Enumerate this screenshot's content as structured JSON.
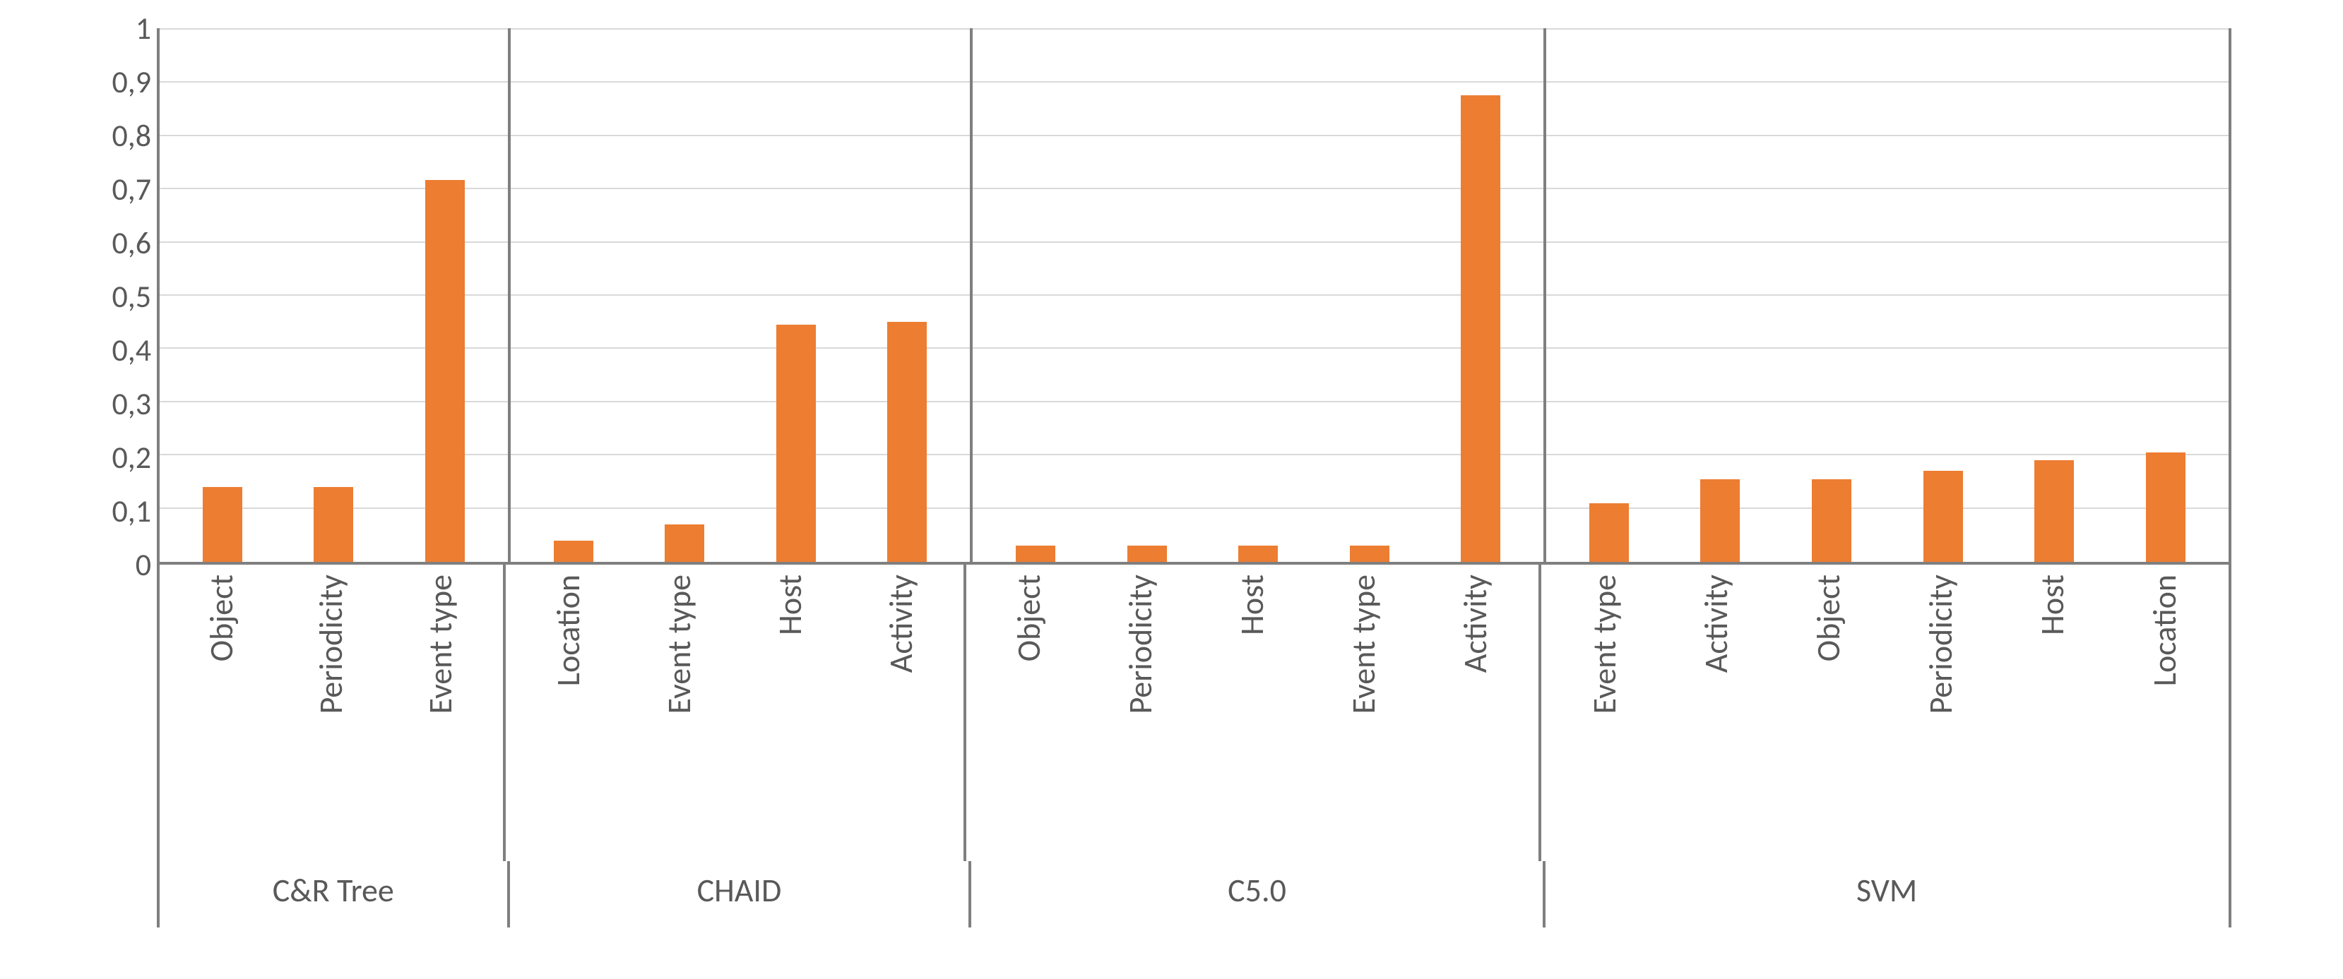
{
  "chart": {
    "type": "bar",
    "ylim": [
      0,
      1
    ],
    "ytick_step": 0.1,
    "ytick_labels": [
      "0",
      "0,1",
      "0,2",
      "0,3",
      "0,4",
      "0,5",
      "0,6",
      "0,7",
      "0,8",
      "0,9",
      "1"
    ],
    "bar_color": "#ed7d31",
    "grid_color": "#d9d9d9",
    "axis_color": "#7f7f7f",
    "text_color": "#595959",
    "background_color": "#ffffff",
    "tick_fontsize": 44,
    "label_fontsize": 46,
    "group_label_fontsize": 46,
    "bar_width_ratio": 0.4,
    "groups": [
      {
        "label": "C&R Tree",
        "bars": [
          {
            "label": "Object",
            "value": 0.14
          },
          {
            "label": "Periodicity",
            "value": 0.14
          },
          {
            "label": "Event type",
            "value": 0.715
          }
        ]
      },
      {
        "label": "CHAID",
        "bars": [
          {
            "label": "Location",
            "value": 0.04
          },
          {
            "label": "Event type",
            "value": 0.07
          },
          {
            "label": "Host",
            "value": 0.445
          },
          {
            "label": "Activity",
            "value": 0.45
          }
        ]
      },
      {
        "label": "C5.0",
        "bars": [
          {
            "label": "Object",
            "value": 0.03
          },
          {
            "label": "Periodicity",
            "value": 0.03
          },
          {
            "label": "Host",
            "value": 0.03
          },
          {
            "label": "Event type",
            "value": 0.03
          },
          {
            "label": "Activity",
            "value": 0.875
          }
        ]
      },
      {
        "label": "SVM",
        "bars": [
          {
            "label": "Event type",
            "value": 0.11
          },
          {
            "label": "Activity",
            "value": 0.155
          },
          {
            "label": "Object",
            "value": 0.155
          },
          {
            "label": "Periodicity",
            "value": 0.17
          },
          {
            "label": "Host",
            "value": 0.19
          },
          {
            "label": "Location",
            "value": 0.205
          }
        ]
      }
    ]
  }
}
